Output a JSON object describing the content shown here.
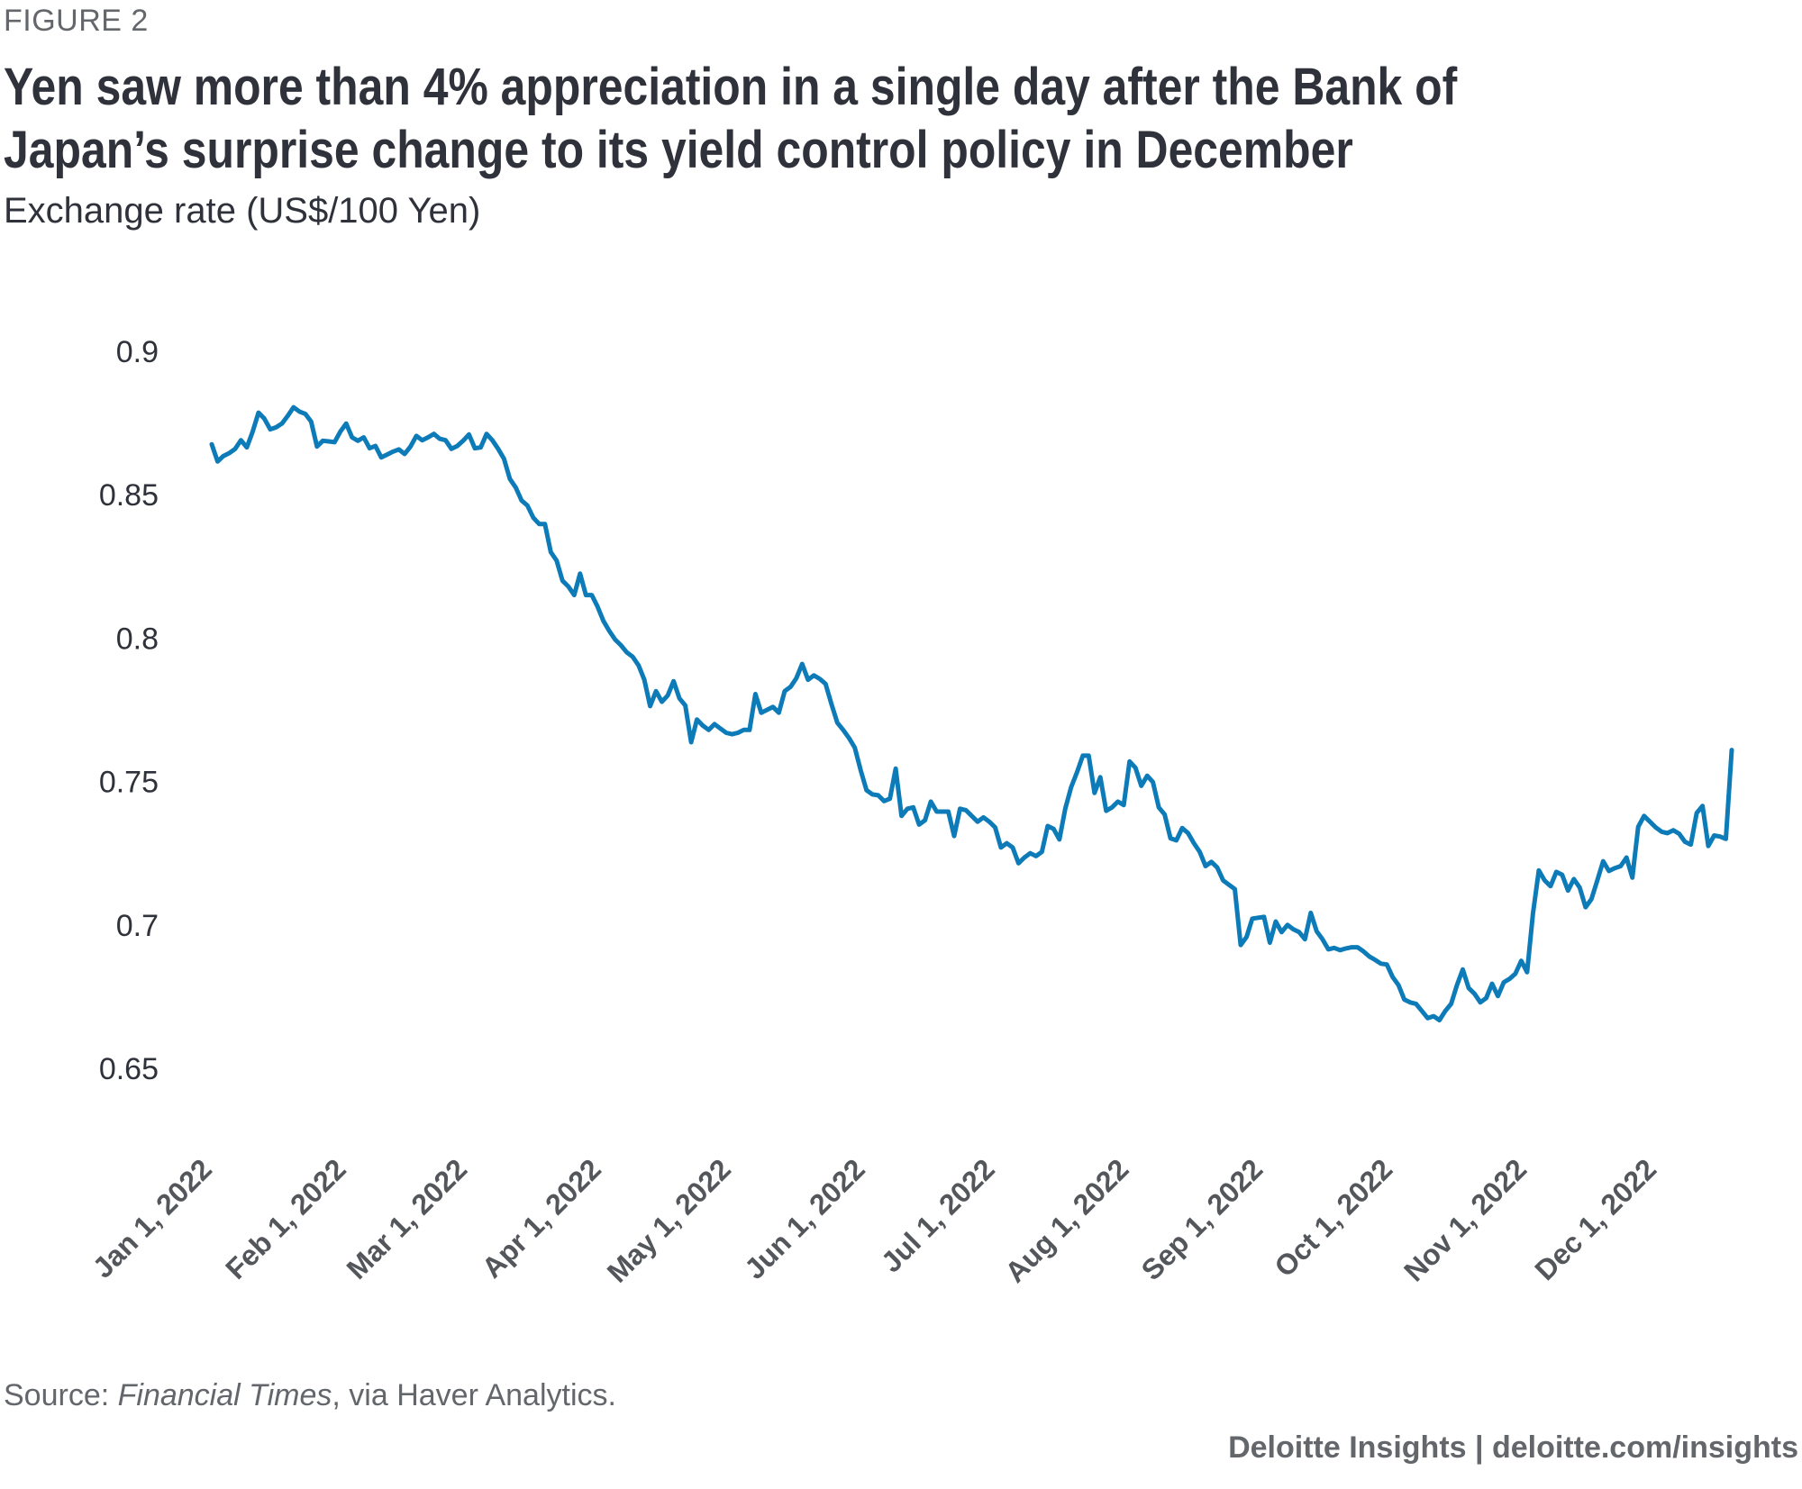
{
  "header": {
    "figure_label": "FIGURE 2",
    "title": "Yen saw more than 4% appreciation in a single day after the Bank of Japan’s surprise change to its yield control policy in December",
    "subtitle": "Exchange rate (US$/100 Yen)"
  },
  "footer": {
    "source_prefix": "Source: ",
    "source_italic": "Financial Times",
    "source_suffix": ", via Haver Analytics.",
    "brand": "Deloitte Insights | deloitte.com/insights"
  },
  "colors": {
    "line": "#0C7BB8",
    "title_text": "#2f323a",
    "muted_text": "#63666a"
  },
  "chart_data": {
    "type": "line",
    "title": "Yen saw more than 4% appreciation in a single day after the Bank of Japan’s surprise change to its yield control policy in December",
    "xlabel": "",
    "ylabel": "Exchange rate (US$/100 Yen)",
    "ylim": [
      0.65,
      0.9
    ],
    "yticks": [
      0.9,
      0.85,
      0.8,
      0.75,
      0.7,
      0.65
    ],
    "ytick_labels": [
      "0.9",
      "0.85",
      "0.8",
      "0.75",
      "0.7",
      "0.65"
    ],
    "xlim": [
      "2022-01-01",
      "2022-12-31"
    ],
    "xticks": [
      "2022-01-01",
      "2022-02-01",
      "2022-03-01",
      "2022-04-01",
      "2022-05-01",
      "2022-06-01",
      "2022-07-01",
      "2022-08-01",
      "2022-09-01",
      "2022-10-01",
      "2022-11-01",
      "2022-12-01"
    ],
    "xtick_labels": [
      "Jan 1, 2022",
      "Feb 1, 2022",
      "Mar 1, 2022",
      "Apr 1, 2022",
      "May 1, 2022",
      "Jun 1, 2022",
      "Jul 1, 2022",
      "Aug 1, 2022",
      "Sep 1, 2022",
      "Oct 1, 2022",
      "Nov 1, 2022",
      "Dec 1, 2022"
    ],
    "grid": false,
    "legend": "none",
    "series": [
      {
        "name": "US$/100 Yen",
        "points": [
          [
            "2022-01-03",
            0.8676
          ],
          [
            "2022-01-04",
            0.8616
          ],
          [
            "2022-01-05",
            0.8635
          ],
          [
            "2022-01-06",
            0.8645
          ],
          [
            "2022-01-07",
            0.866
          ],
          [
            "2022-01-10",
            0.869
          ],
          [
            "2022-01-11",
            0.8665
          ],
          [
            "2022-01-12",
            0.872
          ],
          [
            "2022-01-13",
            0.8786
          ],
          [
            "2022-01-14",
            0.8765
          ],
          [
            "2022-01-17",
            0.8728
          ],
          [
            "2022-01-18",
            0.8735
          ],
          [
            "2022-01-19",
            0.8748
          ],
          [
            "2022-01-20",
            0.8775
          ],
          [
            "2022-01-21",
            0.8805
          ],
          [
            "2022-01-24",
            0.879
          ],
          [
            "2022-01-25",
            0.8782
          ],
          [
            "2022-01-26",
            0.8755
          ],
          [
            "2022-01-27",
            0.8668
          ],
          [
            "2022-01-28",
            0.8688
          ],
          [
            "2022-01-31",
            0.8686
          ],
          [
            "2022-02-01",
            0.8683
          ],
          [
            "2022-02-02",
            0.872
          ],
          [
            "2022-02-03",
            0.8748
          ],
          [
            "2022-02-04",
            0.87
          ],
          [
            "2022-02-07",
            0.8688
          ],
          [
            "2022-02-08",
            0.87
          ],
          [
            "2022-02-09",
            0.8662
          ],
          [
            "2022-02-10",
            0.867
          ],
          [
            "2022-02-11",
            0.863
          ],
          [
            "2022-02-14",
            0.864
          ],
          [
            "2022-02-15",
            0.865
          ],
          [
            "2022-02-16",
            0.8658
          ],
          [
            "2022-02-17",
            0.8642
          ],
          [
            "2022-02-18",
            0.8668
          ],
          [
            "2022-02-21",
            0.8705
          ],
          [
            "2022-02-22",
            0.869
          ],
          [
            "2022-02-23",
            0.87
          ],
          [
            "2022-02-24",
            0.8712
          ],
          [
            "2022-02-25",
            0.8695
          ],
          [
            "2022-02-28",
            0.869
          ],
          [
            "2022-03-01",
            0.866
          ],
          [
            "2022-03-02",
            0.867
          ],
          [
            "2022-03-03",
            0.8688
          ],
          [
            "2022-03-04",
            0.871
          ],
          [
            "2022-03-07",
            0.8662
          ],
          [
            "2022-03-08",
            0.8665
          ],
          [
            "2022-03-09",
            0.8712
          ],
          [
            "2022-03-10",
            0.869
          ],
          [
            "2022-03-11",
            0.866
          ],
          [
            "2022-03-14",
            0.8625
          ],
          [
            "2022-03-15",
            0.8555
          ],
          [
            "2022-03-16",
            0.8525
          ],
          [
            "2022-03-17",
            0.848
          ],
          [
            "2022-03-18",
            0.8462
          ],
          [
            "2022-03-21",
            0.842
          ],
          [
            "2022-03-22",
            0.8398
          ],
          [
            "2022-03-23",
            0.8398
          ],
          [
            "2022-03-24",
            0.83
          ],
          [
            "2022-03-25",
            0.827
          ],
          [
            "2022-03-28",
            0.82
          ],
          [
            "2022-03-29",
            0.818
          ],
          [
            "2022-03-30",
            0.815
          ],
          [
            "2022-03-31",
            0.8225
          ],
          [
            "2022-04-01",
            0.815
          ],
          [
            "2022-04-04",
            0.815
          ],
          [
            "2022-04-05",
            0.811
          ],
          [
            "2022-04-06",
            0.806
          ],
          [
            "2022-04-07",
            0.8025
          ],
          [
            "2022-04-08",
            0.7995
          ],
          [
            "2022-04-11",
            0.7975
          ],
          [
            "2022-04-12",
            0.795
          ],
          [
            "2022-04-13",
            0.7935
          ],
          [
            "2022-04-14",
            0.7905
          ],
          [
            "2022-04-15",
            0.7855
          ],
          [
            "2022-04-18",
            0.7763
          ],
          [
            "2022-04-19",
            0.7815
          ],
          [
            "2022-04-20",
            0.7778
          ],
          [
            "2022-04-21",
            0.78
          ],
          [
            "2022-04-22",
            0.785
          ],
          [
            "2022-04-25",
            0.779
          ],
          [
            "2022-04-26",
            0.7765
          ],
          [
            "2022-04-27",
            0.7637
          ],
          [
            "2022-04-28",
            0.7716
          ],
          [
            "2022-04-29",
            0.7695
          ],
          [
            "2022-05-02",
            0.768
          ],
          [
            "2022-05-03",
            0.77
          ],
          [
            "2022-05-04",
            0.7685
          ],
          [
            "2022-05-05",
            0.767
          ],
          [
            "2022-05-06",
            0.7665
          ],
          [
            "2022-05-09",
            0.767
          ],
          [
            "2022-05-10",
            0.768
          ],
          [
            "2022-05-11",
            0.768
          ],
          [
            "2022-05-12",
            0.7805
          ],
          [
            "2022-05-13",
            0.774
          ],
          [
            "2022-05-16",
            0.775
          ],
          [
            "2022-05-17",
            0.776
          ],
          [
            "2022-05-18",
            0.774
          ],
          [
            "2022-05-19",
            0.7815
          ],
          [
            "2022-05-20",
            0.783
          ],
          [
            "2022-05-23",
            0.786
          ],
          [
            "2022-05-24",
            0.791
          ],
          [
            "2022-05-25",
            0.7855
          ],
          [
            "2022-05-26",
            0.787
          ],
          [
            "2022-05-27",
            0.7858
          ],
          [
            "2022-05-30",
            0.784
          ],
          [
            "2022-05-31",
            0.777
          ],
          [
            "2022-06-01",
            0.7705
          ],
          [
            "2022-06-02",
            0.768
          ],
          [
            "2022-06-03",
            0.7652
          ],
          [
            "2022-06-06",
            0.7618
          ],
          [
            "2022-06-07",
            0.754
          ],
          [
            "2022-06-08",
            0.747
          ],
          [
            "2022-06-09",
            0.7455
          ],
          [
            "2022-06-10",
            0.7452
          ],
          [
            "2022-06-13",
            0.7432
          ],
          [
            "2022-06-14",
            0.744
          ],
          [
            "2022-06-15",
            0.7545
          ],
          [
            "2022-06-16",
            0.738
          ],
          [
            "2022-06-17",
            0.7405
          ],
          [
            "2022-06-20",
            0.741
          ],
          [
            "2022-06-21",
            0.735
          ],
          [
            "2022-06-22",
            0.7365
          ],
          [
            "2022-06-23",
            0.743
          ],
          [
            "2022-06-24",
            0.7395
          ],
          [
            "2022-06-27",
            0.7395
          ],
          [
            "2022-06-28",
            0.7395
          ],
          [
            "2022-06-29",
            0.731
          ],
          [
            "2022-06-30",
            0.7405
          ],
          [
            "2022-07-01",
            0.74
          ],
          [
            "2022-07-04",
            0.738
          ],
          [
            "2022-07-05",
            0.736
          ],
          [
            "2022-07-06",
            0.7375
          ],
          [
            "2022-07-07",
            0.736
          ],
          [
            "2022-07-08",
            0.734
          ],
          [
            "2022-07-11",
            0.727
          ],
          [
            "2022-07-12",
            0.7285
          ],
          [
            "2022-07-13",
            0.727
          ],
          [
            "2022-07-14",
            0.7215
          ],
          [
            "2022-07-15",
            0.7235
          ],
          [
            "2022-07-18",
            0.725
          ],
          [
            "2022-07-19",
            0.724
          ],
          [
            "2022-07-20",
            0.7255
          ],
          [
            "2022-07-21",
            0.7345
          ],
          [
            "2022-07-22",
            0.7335
          ],
          [
            "2022-07-25",
            0.7298
          ],
          [
            "2022-07-26",
            0.7405
          ],
          [
            "2022-07-27",
            0.748
          ],
          [
            "2022-07-28",
            0.7532
          ],
          [
            "2022-07-29",
            0.759
          ],
          [
            "2022-08-01",
            0.759
          ],
          [
            "2022-08-02",
            0.746
          ],
          [
            "2022-08-03",
            0.7515
          ],
          [
            "2022-08-04",
            0.7398
          ],
          [
            "2022-08-05",
            0.741
          ],
          [
            "2022-08-08",
            0.743
          ],
          [
            "2022-08-09",
            0.7418
          ],
          [
            "2022-08-10",
            0.757
          ],
          [
            "2022-08-11",
            0.7548
          ],
          [
            "2022-08-12",
            0.7485
          ],
          [
            "2022-08-15",
            0.752
          ],
          [
            "2022-08-16",
            0.7498
          ],
          [
            "2022-08-17",
            0.741
          ],
          [
            "2022-08-18",
            0.7385
          ],
          [
            "2022-08-19",
            0.7302
          ],
          [
            "2022-08-22",
            0.7295
          ],
          [
            "2022-08-23",
            0.7338
          ],
          [
            "2022-08-24",
            0.732
          ],
          [
            "2022-08-25",
            0.7285
          ],
          [
            "2022-08-26",
            0.7255
          ],
          [
            "2022-08-29",
            0.7205
          ],
          [
            "2022-08-30",
            0.722
          ],
          [
            "2022-08-31",
            0.72
          ],
          [
            "2022-09-01",
            0.7155
          ],
          [
            "2022-09-02",
            0.714
          ],
          [
            "2022-09-05",
            0.7125
          ],
          [
            "2022-09-06",
            0.693
          ],
          [
            "2022-09-07",
            0.6958
          ],
          [
            "2022-09-08",
            0.7022
          ],
          [
            "2022-09-09",
            0.7025
          ],
          [
            "2022-09-12",
            0.7028
          ],
          [
            "2022-09-13",
            0.6938
          ],
          [
            "2022-09-14",
            0.7012
          ],
          [
            "2022-09-15",
            0.6975
          ],
          [
            "2022-09-16",
            0.7
          ],
          [
            "2022-09-19",
            0.6985
          ],
          [
            "2022-09-20",
            0.6975
          ],
          [
            "2022-09-21",
            0.695
          ],
          [
            "2022-09-22",
            0.7042
          ],
          [
            "2022-09-23",
            0.6978
          ],
          [
            "2022-09-26",
            0.695
          ],
          [
            "2022-09-27",
            0.6915
          ],
          [
            "2022-09-28",
            0.692
          ],
          [
            "2022-09-29",
            0.6912
          ],
          [
            "2022-09-30",
            0.6918
          ],
          [
            "2022-10-03",
            0.6922
          ],
          [
            "2022-10-04",
            0.6922
          ],
          [
            "2022-10-05",
            0.6908
          ],
          [
            "2022-10-06",
            0.689
          ],
          [
            "2022-10-07",
            0.6878
          ],
          [
            "2022-10-10",
            0.6865
          ],
          [
            "2022-10-11",
            0.6862
          ],
          [
            "2022-10-12",
            0.6818
          ],
          [
            "2022-10-13",
            0.679
          ],
          [
            "2022-10-14",
            0.674
          ],
          [
            "2022-10-17",
            0.673
          ],
          [
            "2022-10-18",
            0.6725
          ],
          [
            "2022-10-19",
            0.67
          ],
          [
            "2022-10-20",
            0.6675
          ],
          [
            "2022-10-21",
            0.6682
          ],
          [
            "2022-10-24",
            0.6668
          ],
          [
            "2022-10-25",
            0.67
          ],
          [
            "2022-10-26",
            0.6725
          ],
          [
            "2022-10-27",
            0.679
          ],
          [
            "2022-10-28",
            0.6845
          ],
          [
            "2022-10-31",
            0.678
          ],
          [
            "2022-11-01",
            0.676
          ],
          [
            "2022-11-02",
            0.673
          ],
          [
            "2022-11-03",
            0.6745
          ],
          [
            "2022-11-04",
            0.6795
          ],
          [
            "2022-11-07",
            0.6752
          ],
          [
            "2022-11-08",
            0.68
          ],
          [
            "2022-11-09",
            0.6812
          ],
          [
            "2022-11-10",
            0.683
          ],
          [
            "2022-11-11",
            0.6875
          ],
          [
            "2022-11-14",
            0.6835
          ],
          [
            "2022-11-15",
            0.704
          ],
          [
            "2022-11-16",
            0.719
          ],
          [
            "2022-11-17",
            0.7155
          ],
          [
            "2022-11-18",
            0.7135
          ],
          [
            "2022-11-21",
            0.7185
          ],
          [
            "2022-11-22",
            0.7175
          ],
          [
            "2022-11-23",
            0.712
          ],
          [
            "2022-11-24",
            0.716
          ],
          [
            "2022-11-25",
            0.713
          ],
          [
            "2022-11-28",
            0.7062
          ],
          [
            "2022-11-29",
            0.709
          ],
          [
            "2022-11-30",
            0.7155
          ],
          [
            "2022-12-01",
            0.7222
          ],
          [
            "2022-12-02",
            0.7188
          ],
          [
            "2022-12-05",
            0.7198
          ],
          [
            "2022-12-06",
            0.7205
          ],
          [
            "2022-12-07",
            0.7235
          ],
          [
            "2022-12-08",
            0.7165
          ],
          [
            "2022-12-09",
            0.7342
          ],
          [
            "2022-12-12",
            0.738
          ],
          [
            "2022-12-13",
            0.736
          ],
          [
            "2022-12-14",
            0.734
          ],
          [
            "2022-12-15",
            0.7325
          ],
          [
            "2022-12-16",
            0.732
          ],
          [
            "2022-12-19",
            0.733
          ],
          [
            "2022-12-20",
            0.7318
          ],
          [
            "2022-12-21",
            0.729
          ],
          [
            "2022-12-22",
            0.728
          ],
          [
            "2022-12-23",
            0.739
          ],
          [
            "2022-12-26",
            0.7415
          ],
          [
            "2022-12-27",
            0.7275
          ],
          [
            "2022-12-28",
            0.7312
          ],
          [
            "2022-12-29",
            0.7308
          ],
          [
            "2022-12-30",
            0.73
          ],
          [
            "2022-12-31",
            0.761
          ]
        ]
      }
    ]
  }
}
